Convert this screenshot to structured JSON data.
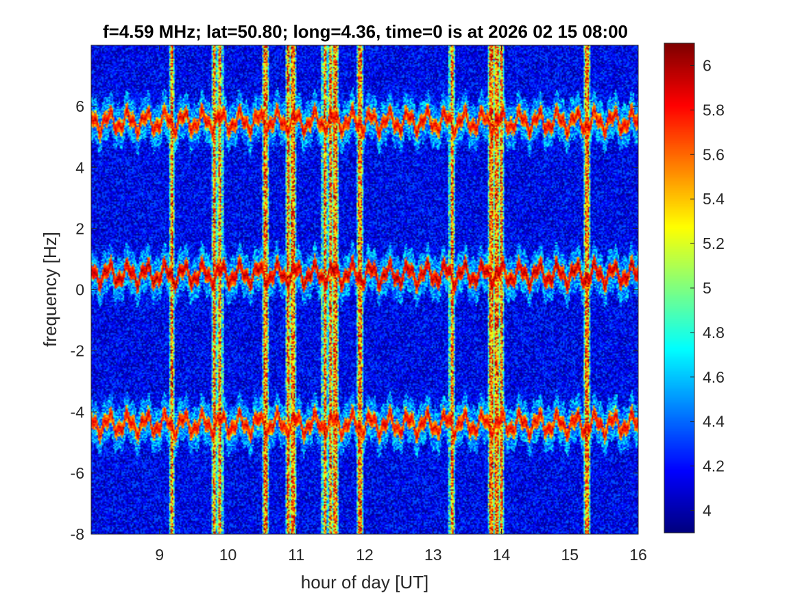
{
  "chart_data": {
    "type": "heatmap",
    "title": "f=4.59 MHz;  lat=50.80; long=4.36, time=0 is at 2026 02 15 08:00",
    "xlabel": "hour of day [UT]",
    "ylabel": "frequency [Hz]",
    "xlim": [
      8,
      16
    ],
    "ylim": [
      -8,
      8
    ],
    "xticks": [
      "9",
      "10",
      "11",
      "12",
      "13",
      "14",
      "15",
      "16"
    ],
    "xtick_values": [
      9,
      10,
      11,
      12,
      13,
      14,
      15,
      16
    ],
    "yticks": [
      "-8",
      "-6",
      "-4",
      "-2",
      "0",
      "2",
      "4",
      "6"
    ],
    "ytick_values": [
      -8,
      -6,
      -4,
      -2,
      0,
      2,
      4,
      6
    ],
    "colorbar": {
      "colormap": "jet",
      "clim": [
        3.9,
        6.1
      ],
      "ticks": [
        "4",
        "4.2",
        "4.4",
        "4.6",
        "4.8",
        "5",
        "5.2",
        "5.4",
        "5.6",
        "5.8",
        "6"
      ],
      "tick_values": [
        4,
        4.2,
        4.4,
        4.6,
        4.8,
        5,
        5.2,
        5.4,
        5.6,
        5.8,
        6
      ]
    },
    "background_level": 4.15,
    "horizontal_bands": [
      {
        "name": "upper",
        "center_hz": 5.5,
        "level": 5.9
      },
      {
        "name": "middle",
        "center_hz": 0.5,
        "level": 6.0
      },
      {
        "name": "lower",
        "center_hz": -4.4,
        "level": 5.9
      }
    ],
    "vertical_lines_hour": [
      9.18,
      9.8,
      9.88,
      10.55,
      10.88,
      10.95,
      11.42,
      11.5,
      11.57,
      11.93,
      13.28,
      13.85,
      13.93,
      14.0,
      15.25
    ]
  }
}
